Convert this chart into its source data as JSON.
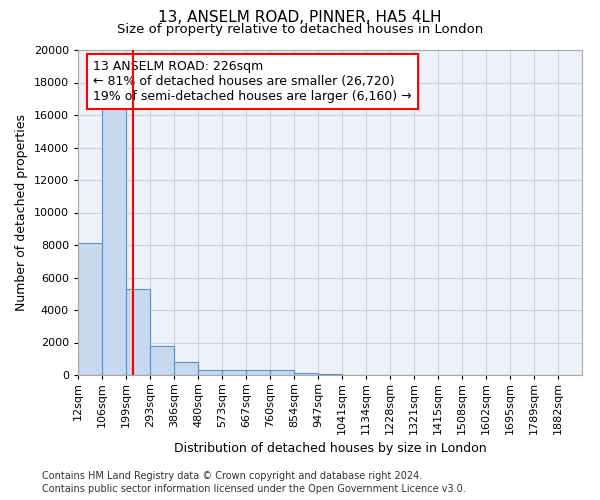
{
  "title": "13, ANSELM ROAD, PINNER, HA5 4LH",
  "subtitle": "Size of property relative to detached houses in London",
  "xlabel": "Distribution of detached houses by size in London",
  "ylabel": "Number of detached properties",
  "footnote1": "Contains HM Land Registry data © Crown copyright and database right 2024.",
  "footnote2": "Contains public sector information licensed under the Open Government Licence v3.0.",
  "annotation_line1": "13 ANSELM ROAD: 226sqm",
  "annotation_line2": "← 81% of detached houses are smaller (26,720)",
  "annotation_line3": "19% of semi-detached houses are larger (6,160) →",
  "bar_color": "#c8d8ee",
  "bar_edge_color": "#6090c0",
  "red_line_x": 226,
  "categories": [
    "12sqm",
    "106sqm",
    "199sqm",
    "293sqm",
    "386sqm",
    "480sqm",
    "573sqm",
    "667sqm",
    "760sqm",
    "854sqm",
    "947sqm",
    "1041sqm",
    "1134sqm",
    "1228sqm",
    "1321sqm",
    "1415sqm",
    "1508sqm",
    "1602sqm",
    "1695sqm",
    "1789sqm",
    "1882sqm"
  ],
  "bin_edges": [
    12,
    106,
    199,
    293,
    386,
    480,
    573,
    667,
    760,
    854,
    947,
    1041,
    1134,
    1228,
    1321,
    1415,
    1508,
    1602,
    1695,
    1789,
    1882,
    1975
  ],
  "values": [
    8100,
    16500,
    5300,
    1800,
    800,
    300,
    280,
    280,
    280,
    100,
    50,
    30,
    20,
    15,
    10,
    8,
    6,
    5,
    4,
    3,
    2
  ],
  "ylim": [
    0,
    20000
  ],
  "yticks": [
    0,
    2000,
    4000,
    6000,
    8000,
    10000,
    12000,
    14000,
    16000,
    18000,
    20000
  ],
  "background_color": "#eef2f8",
  "grid_color": "#c8d0dc",
  "title_fontsize": 11,
  "subtitle_fontsize": 9.5,
  "axis_label_fontsize": 9,
  "tick_fontsize": 8,
  "annotation_fontsize": 9,
  "footnote_fontsize": 7
}
